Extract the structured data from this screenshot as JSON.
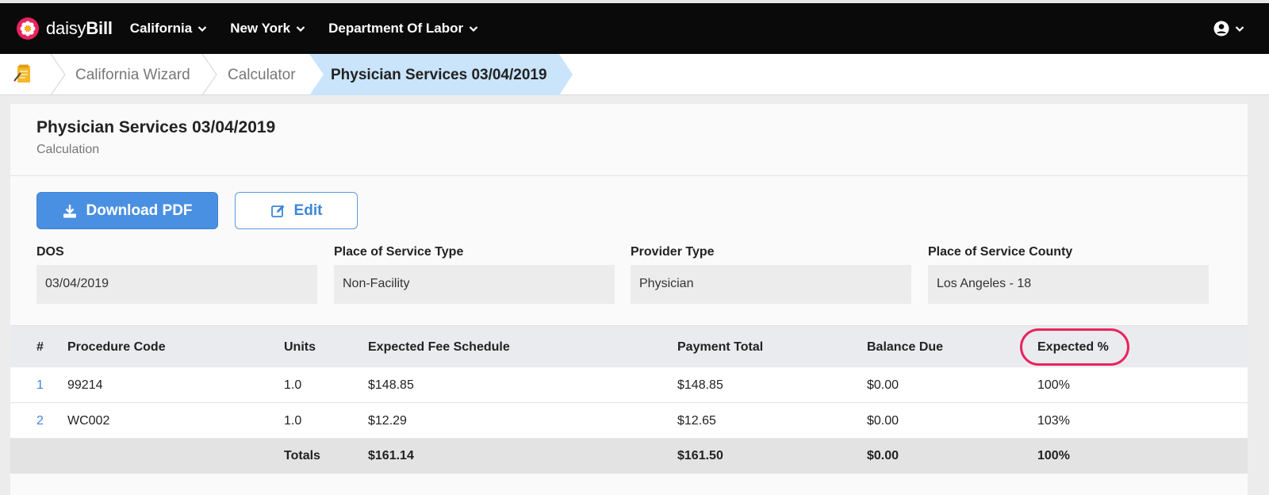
{
  "brand": {
    "name_part1": "daisy",
    "name_part2": "Bill"
  },
  "nav": {
    "menus": [
      "California",
      "New York",
      "Department Of Labor"
    ]
  },
  "breadcrumb": {
    "items": [
      "California Wizard",
      "Calculator",
      "Physician Services 03/04/2019"
    ]
  },
  "card": {
    "title": "Physician Services 03/04/2019",
    "subtitle": "Calculation",
    "download_label": "Download PDF",
    "edit_label": "Edit"
  },
  "fields": [
    {
      "label": "DOS",
      "value": "03/04/2019"
    },
    {
      "label": "Place of Service Type",
      "value": "Non-Facility"
    },
    {
      "label": "Provider Type",
      "value": "Physician"
    },
    {
      "label": "Place of Service County",
      "value": "Los Angeles - 18"
    }
  ],
  "table": {
    "headers": [
      "#",
      "Procedure Code",
      "Units",
      "Expected Fee Schedule",
      "Payment Total",
      "Balance Due",
      "Expected %"
    ],
    "rows": [
      [
        "1",
        "99214",
        "1.0",
        "$148.85",
        "$148.85",
        "$0.00",
        "100%"
      ],
      [
        "2",
        "WC002",
        "1.0",
        "$12.29",
        "$12.65",
        "$0.00",
        "103%"
      ]
    ],
    "totals": {
      "label": "Totals",
      "expected_fee": "$161.14",
      "payment_total": "$161.50",
      "balance_due": "$0.00",
      "expected_pct": "100%"
    }
  },
  "colors": {
    "accent": "#4a90e2",
    "highlight": "#e8245f",
    "breadcrumb_active": "#c9e4fb",
    "brand_flower": "#e8245f"
  },
  "icons": {
    "logo": "daisy-flower-icon",
    "home": "notepad-icon",
    "download": "download-icon",
    "edit": "edit-icon",
    "user": "user-circle-icon"
  }
}
